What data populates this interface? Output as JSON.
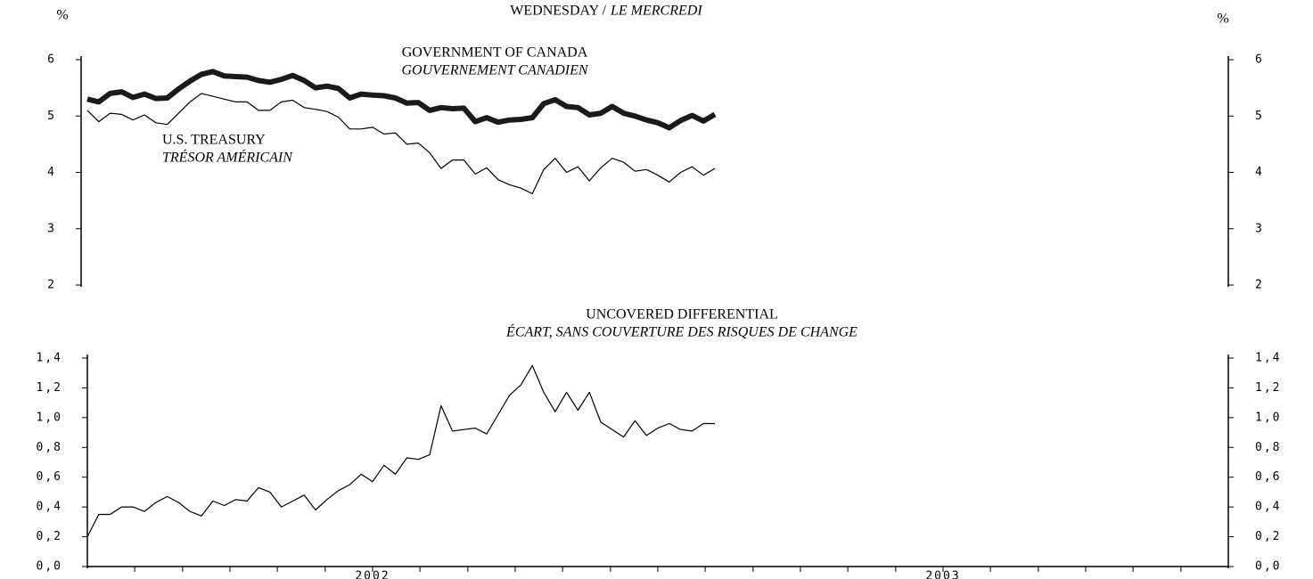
{
  "chart_data": [
    {
      "type": "line",
      "title": "WEDNESDAY /",
      "title_fr": "LE MERCREDI",
      "unit": "%",
      "x": [
        2002,
        2002.02,
        2002.04,
        2002.06,
        2002.08,
        2002.1,
        2002.12,
        2002.14,
        2002.16,
        2002.18,
        2002.2,
        2002.22,
        2002.24,
        2002.26,
        2002.28,
        2002.3,
        2002.32,
        2002.34,
        2002.36,
        2002.38,
        2002.4,
        2002.42,
        2002.44,
        2002.46,
        2002.48,
        2002.5,
        2002.52,
        2002.54,
        2002.56,
        2002.58,
        2002.6,
        2002.62,
        2002.64,
        2002.66,
        2002.68,
        2002.7,
        2002.72,
        2002.74,
        2002.76,
        2002.78,
        2002.8,
        2002.82,
        2002.84,
        2002.86,
        2002.88,
        2002.9,
        2002.92,
        2002.94,
        2002.96,
        2002.98,
        2003,
        2003.02,
        2003.04,
        2003.06,
        2003.08,
        2003.1
      ],
      "xlim": [
        2002,
        2004
      ],
      "ylim": [
        2,
        6
      ],
      "yticks": [
        2,
        3,
        4,
        5,
        6
      ],
      "series": [
        {
          "name": "GOVERNMENT OF CANADA",
          "name_fr": "GOUVERNEMENT CANADIEN",
          "color": "#1a1a1a",
          "line_width": 6,
          "values": [
            5.3,
            5.25,
            5.4,
            5.43,
            5.33,
            5.39,
            5.31,
            5.32,
            5.48,
            5.62,
            5.74,
            5.79,
            5.71,
            5.7,
            5.69,
            5.63,
            5.6,
            5.65,
            5.72,
            5.63,
            5.5,
            5.53,
            5.49,
            5.32,
            5.39,
            5.37,
            5.36,
            5.32,
            5.23,
            5.24,
            5.1,
            5.15,
            5.13,
            5.14,
            4.9,
            4.97,
            4.89,
            4.93,
            4.94,
            4.97,
            5.22,
            5.29,
            5.17,
            5.15,
            5.02,
            5.05,
            5.17,
            5.05,
            5.0,
            4.93,
            4.88,
            4.79,
            4.92,
            5.01,
            4.91,
            5.03
          ]
        },
        {
          "name": "U.S. TREASURY",
          "name_fr": "TRÉSOR AMÉRICAIN",
          "color": "#000000",
          "line_width": 1.2,
          "values": [
            5.1,
            4.9,
            5.05,
            5.03,
            4.93,
            5.02,
            4.88,
            4.85,
            5.05,
            5.25,
            5.4,
            5.35,
            5.3,
            5.25,
            5.25,
            5.1,
            5.1,
            5.25,
            5.28,
            5.15,
            5.12,
            5.08,
            4.98,
            4.77,
            4.77,
            4.8,
            4.68,
            4.7,
            4.5,
            4.52,
            4.35,
            4.07,
            4.22,
            4.22,
            3.97,
            4.08,
            3.87,
            3.78,
            3.72,
            3.62,
            4.05,
            4.25,
            4.0,
            4.1,
            3.85,
            4.08,
            4.25,
            4.18,
            4.02,
            4.05,
            3.95,
            3.83,
            4.0,
            4.1,
            3.95,
            4.07
          ]
        }
      ]
    },
    {
      "type": "line",
      "title": "UNCOVERED DIFFERENTIAL",
      "title_fr": "ÉCART, SANS COUVERTURE DES RISQUES DE CHANGE",
      "x": [
        2002,
        2002.02,
        2002.04,
        2002.06,
        2002.08,
        2002.1,
        2002.12,
        2002.14,
        2002.16,
        2002.18,
        2002.2,
        2002.22,
        2002.24,
        2002.26,
        2002.28,
        2002.3,
        2002.32,
        2002.34,
        2002.36,
        2002.38,
        2002.4,
        2002.42,
        2002.44,
        2002.46,
        2002.48,
        2002.5,
        2002.52,
        2002.54,
        2002.56,
        2002.58,
        2002.6,
        2002.62,
        2002.64,
        2002.66,
        2002.68,
        2002.7,
        2002.72,
        2002.74,
        2002.76,
        2002.78,
        2002.8,
        2002.82,
        2002.84,
        2002.86,
        2002.88,
        2002.9,
        2002.92,
        2002.94,
        2002.96,
        2002.98,
        2003,
        2003.02,
        2003.04,
        2003.06,
        2003.08,
        2003.1
      ],
      "xlim": [
        2002,
        2004
      ],
      "xticks": [
        {
          "value": 2002.5,
          "label": "2002"
        },
        {
          "value": 2003.5,
          "label": "2003"
        }
      ],
      "x_minor_ticks": [
        2002.083,
        2002.167,
        2002.25,
        2002.333,
        2002.417,
        2002.583,
        2002.667,
        2002.75,
        2002.833,
        2002.917,
        2003,
        2003.083,
        2003.167,
        2003.25,
        2003.333,
        2003.417,
        2003.583,
        2003.667,
        2003.75,
        2003.833,
        2003.917
      ],
      "ylim": [
        0,
        1.4
      ],
      "yticks": [
        {
          "value": 0,
          "label": "0,0"
        },
        {
          "value": 0.2,
          "label": "0,2"
        },
        {
          "value": 0.4,
          "label": "0,4"
        },
        {
          "value": 0.6,
          "label": "0,6"
        },
        {
          "value": 0.8,
          "label": "0,8"
        },
        {
          "value": 1.0,
          "label": "1,0"
        },
        {
          "value": 1.2,
          "label": "1,2"
        },
        {
          "value": 1.4,
          "label": "1,4"
        }
      ],
      "series": [
        {
          "color": "#000000",
          "line_width": 1.2,
          "values": [
            0.2,
            0.35,
            0.35,
            0.4,
            0.4,
            0.37,
            0.43,
            0.47,
            0.43,
            0.37,
            0.34,
            0.44,
            0.41,
            0.45,
            0.44,
            0.53,
            0.5,
            0.4,
            0.44,
            0.48,
            0.38,
            0.45,
            0.51,
            0.55,
            0.62,
            0.57,
            0.68,
            0.62,
            0.73,
            0.72,
            0.75,
            1.08,
            0.91,
            0.92,
            0.93,
            0.89,
            1.02,
            1.15,
            1.22,
            1.35,
            1.17,
            1.04,
            1.17,
            1.05,
            1.17,
            0.97,
            0.92,
            0.87,
            0.98,
            0.88,
            0.93,
            0.96,
            0.92,
            0.91,
            0.96,
            0.96
          ]
        }
      ]
    }
  ]
}
